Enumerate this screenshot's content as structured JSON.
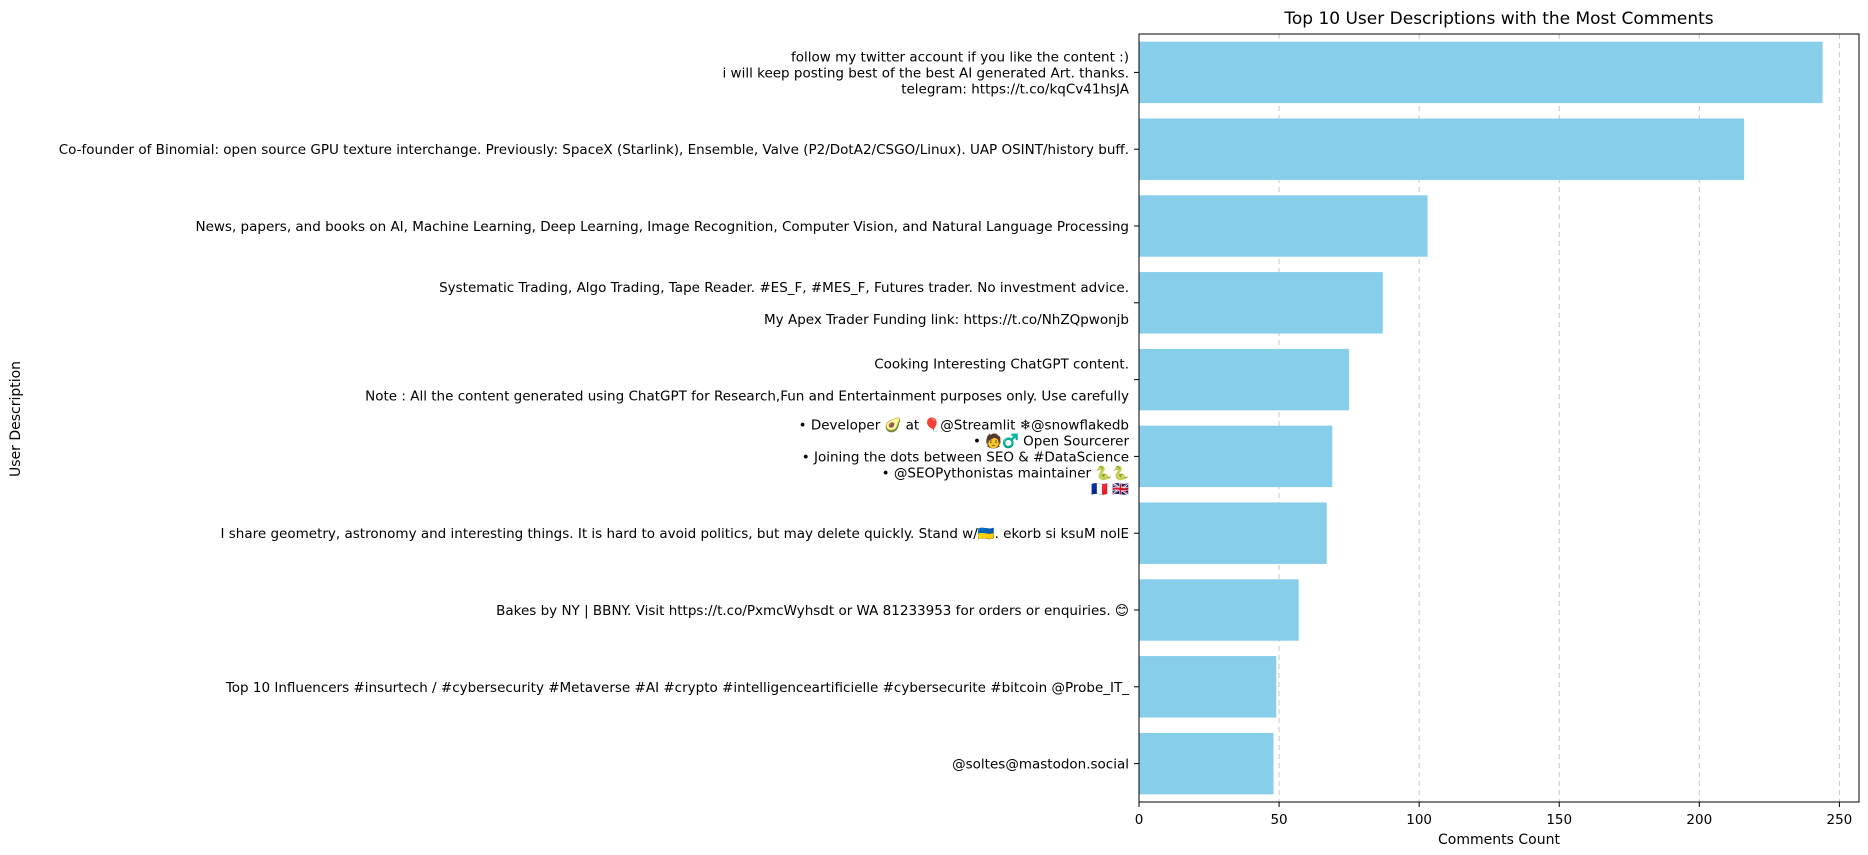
{
  "chart_data": {
    "type": "bar",
    "orientation": "horizontal",
    "title": "Top 10 User Descriptions with the Most Comments",
    "xlabel": "Comments Count",
    "ylabel": "User Description",
    "xlim": [
      0,
      257
    ],
    "xticks": [
      0,
      50,
      100,
      150,
      200,
      250
    ],
    "grid": "x-dashed",
    "bar_color": "#87ceeb",
    "categories": [
      [
        "follow my twitter account if you like the content :)",
        "i will keep posting best of the best AI generated Art. thanks.",
        "telegram: https://t.co/kqCv41hsJA"
      ],
      [
        "Co-founder of Binomial: open source GPU texture interchange. Previously: SpaceX (Starlink), Ensemble, Valve (P2/DotA2/CSGO/Linux). UAP OSINT/history buff."
      ],
      [
        "News, papers, and books on AI, Machine Learning, Deep Learning, Image Recognition, Computer Vision, and Natural Language Processing"
      ],
      [
        "Systematic Trading, Algo Trading, Tape Reader. #ES_F, #MES_F, Futures trader. No investment advice.",
        "",
        "My Apex Trader Funding link: https://t.co/NhZQpwonjb"
      ],
      [
        "Cooking Interesting ChatGPT content.",
        "",
        "Note : All the content generated using ChatGPT  for Research,Fun and Entertainment purposes only. Use carefully"
      ],
      [
        "• Developer 🥑 at 🎈@Streamlit ❄@snowflakedb",
        "• 🧑‍♂️ Open Sourcerer",
        "• Joining the dots between SEO & #DataScience",
        "• @SEOPythonistas maintainer 🐍🐍",
        "🇫🇷 🇬🇧"
      ],
      [
        "I share geometry, astronomy and interesting things. It is hard to avoid politics, but may delete quickly. Stand w/🇺🇦. ekorb si ksuM nolE"
      ],
      [
        "Bakes by NY | BBNY. Visit https://t.co/PxmcWyhsdt or WA 81233953 for orders or enquiries. 😊"
      ],
      [
        "Top 10 Influencers #insurtech / #cybersecurity #Metaverse #AI #crypto #intelligenceartificielle #cybersecurite #bitcoin @Probe_IT_"
      ],
      [
        "@soltes@mastodon.social"
      ]
    ],
    "values": [
      244,
      216,
      103,
      87,
      75,
      69,
      67,
      57,
      49,
      48
    ]
  }
}
